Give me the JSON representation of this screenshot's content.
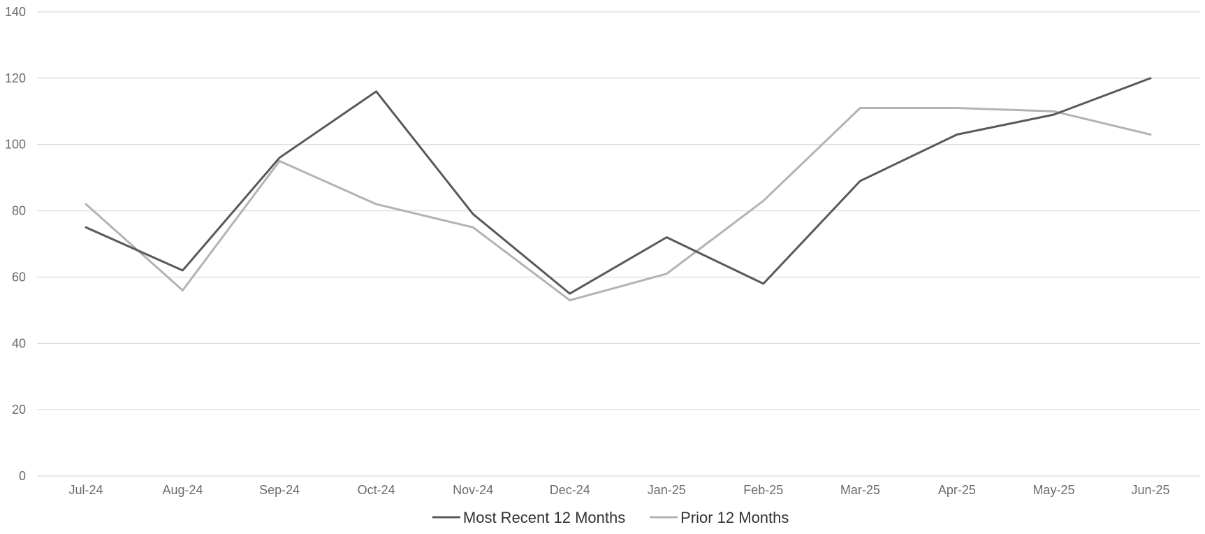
{
  "chart_data": {
    "type": "line",
    "categories": [
      "Jul-24",
      "Aug-24",
      "Sep-24",
      "Oct-24",
      "Nov-24",
      "Dec-24",
      "Jan-25",
      "Feb-25",
      "Mar-25",
      "Apr-25",
      "May-25",
      "Jun-25"
    ],
    "series": [
      {
        "name": "Most Recent 12 Months",
        "values": [
          75,
          62,
          96,
          116,
          79,
          55,
          72,
          58,
          89,
          103,
          109,
          120
        ],
        "color": "#595959"
      },
      {
        "name": "Prior 12 Months",
        "values": [
          82,
          56,
          95,
          82,
          75,
          53,
          61,
          83,
          111,
          111,
          110,
          103
        ],
        "color": "#b3b3b3"
      }
    ],
    "title": "",
    "xlabel": "",
    "ylabel": "",
    "ylim": [
      0,
      140
    ],
    "yticks": [
      "0",
      "20",
      "40",
      "60",
      "80",
      "100",
      "120",
      "140"
    ],
    "grid": true,
    "legend_position": "bottom"
  }
}
